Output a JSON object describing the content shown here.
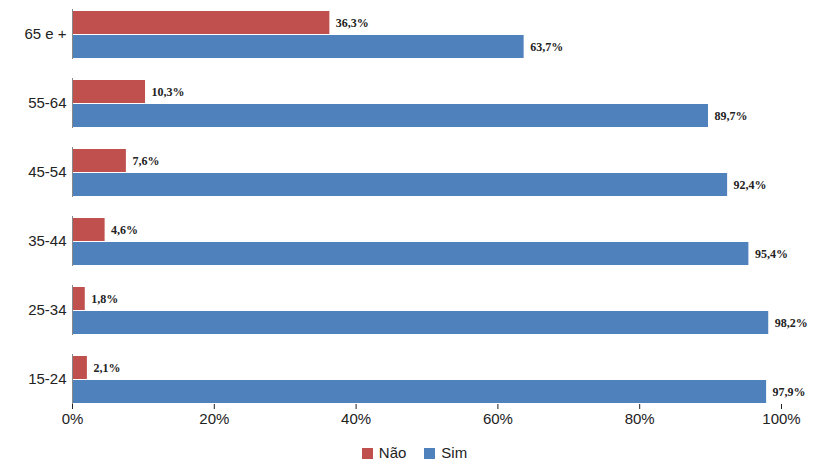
{
  "chart_data": {
    "type": "bar",
    "orientation": "horizontal",
    "categories": [
      "65 e +",
      "55-64",
      "45-54",
      "35-44",
      "25-34",
      "15-24"
    ],
    "series": [
      {
        "name": "Não",
        "color": "#c0504d",
        "values": [
          36.3,
          10.3,
          7.6,
          4.6,
          1.8,
          2.1
        ],
        "value_labels": [
          "36,3%",
          "10,3%",
          "7,6%",
          "4,6%",
          "1,8%",
          "2,1%"
        ]
      },
      {
        "name": "Sim",
        "color": "#4f81bd",
        "values": [
          63.7,
          89.7,
          92.4,
          95.4,
          98.2,
          97.9
        ],
        "value_labels": [
          "63,7%",
          "89,7%",
          "92,4%",
          "95,4%",
          "98,2%",
          "97,9%"
        ]
      }
    ],
    "xlim": [
      0,
      100
    ],
    "xticks": [
      {
        "value": 0,
        "label": "0%"
      },
      {
        "value": 20,
        "label": "20%"
      },
      {
        "value": 40,
        "label": "40%"
      },
      {
        "value": 60,
        "label": "60%"
      },
      {
        "value": 80,
        "label": "80%"
      },
      {
        "value": 100,
        "label": "100%"
      }
    ],
    "grid": false,
    "data_labels": true,
    "legend": "bottom"
  }
}
